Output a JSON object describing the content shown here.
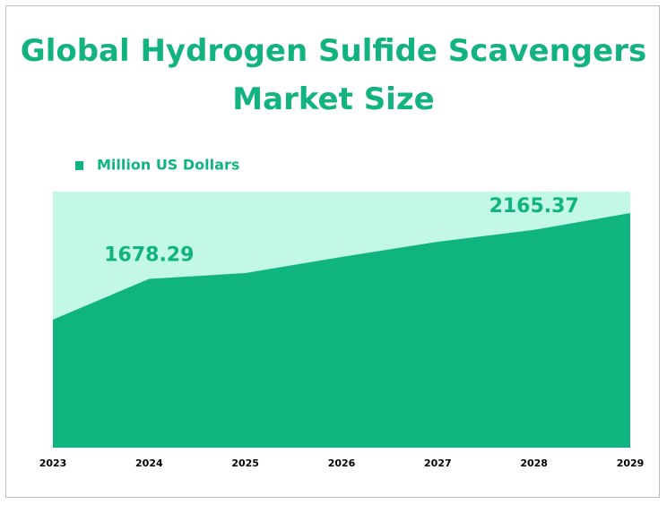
{
  "chart_data": {
    "type": "area",
    "title": "Global Hydrogen Sulfide Scavengers Market Size",
    "categories": [
      "2023",
      "2024",
      "2025",
      "2026",
      "2027",
      "2028",
      "2029"
    ],
    "series": [
      {
        "name": "Million US Dollars",
        "color": "#10b47f",
        "values": [
          1273,
          1678.29,
          1736,
          1896,
          2047,
          2165.37,
          2332
        ],
        "value_labels": [
          null,
          "1678.29",
          null,
          null,
          null,
          "2165.37",
          null
        ]
      }
    ],
    "ylim": [
      0,
      2546
    ],
    "background_color": "#c3f7e6"
  }
}
